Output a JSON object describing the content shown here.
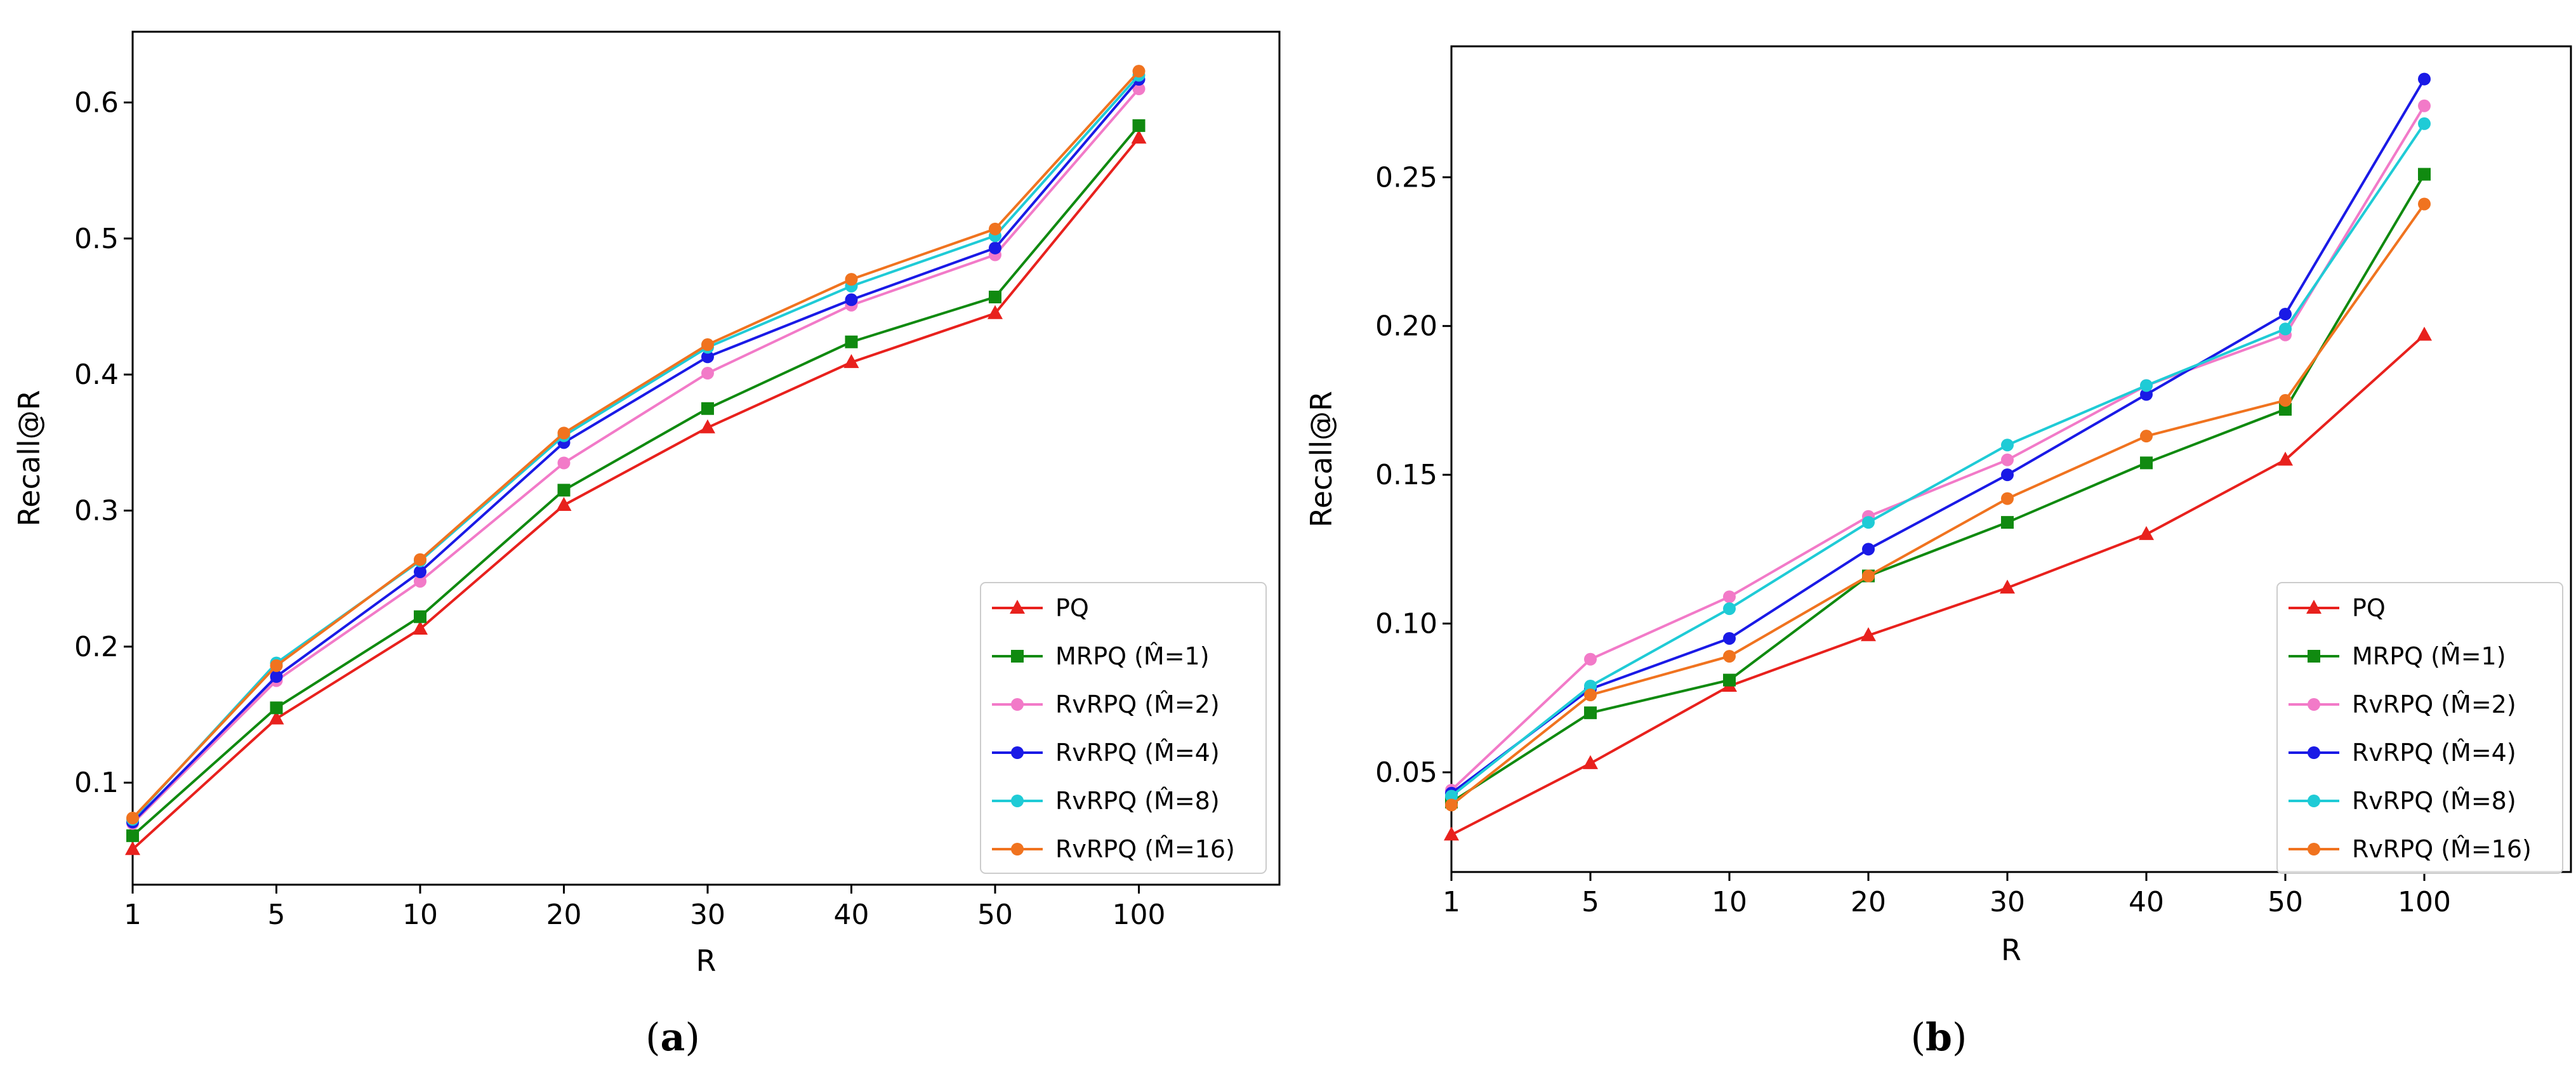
{
  "chart_data": [
    {
      "type": "line",
      "panel_label": "a",
      "xlabel": "R",
      "ylabel": "Recall@R",
      "categories": [
        "1",
        "5",
        "10",
        "20",
        "30",
        "40",
        "50",
        "100"
      ],
      "ylim": [
        0.025,
        0.652
      ],
      "yticks": [
        0.1,
        0.2,
        0.3,
        0.4,
        0.5,
        0.6
      ],
      "ytick_labels": [
        "0.1",
        "0.2",
        "0.3",
        "0.4",
        "0.5",
        "0.6"
      ],
      "grid": false,
      "legend": "bottom-right",
      "series": [
        {
          "name": "PQ",
          "name_base": "PQ",
          "name_param": "",
          "color": "#e8211d",
          "marker": "triangle",
          "values": [
            0.051,
            0.147,
            0.213,
            0.304,
            0.361,
            0.409,
            0.445,
            0.574
          ]
        },
        {
          "name": "MRPQ (M̂=1)",
          "name_base": "MRPQ",
          "name_param": "1",
          "color": "#108a10",
          "marker": "square",
          "values": [
            0.061,
            0.155,
            0.222,
            0.315,
            0.375,
            0.424,
            0.457,
            0.583
          ]
        },
        {
          "name": "RvRPQ (M̂=2)",
          "name_base": "RvRPQ",
          "name_param": "2",
          "color": "#f27ac8",
          "marker": "circle",
          "values": [
            0.07,
            0.175,
            0.248,
            0.335,
            0.401,
            0.451,
            0.488,
            0.61
          ]
        },
        {
          "name": "RvRPQ (M̂=4)",
          "name_base": "RvRPQ",
          "name_param": "4",
          "color": "#1a1ae6",
          "marker": "circle",
          "values": [
            0.071,
            0.178,
            0.255,
            0.35,
            0.413,
            0.455,
            0.493,
            0.617
          ]
        },
        {
          "name": "RvRPQ (M̂=8)",
          "name_base": "RvRPQ",
          "name_param": "8",
          "color": "#1fcbd6",
          "marker": "circle",
          "values": [
            0.073,
            0.188,
            0.263,
            0.355,
            0.42,
            0.465,
            0.502,
            0.62
          ]
        },
        {
          "name": "RvRPQ (M̂=16)",
          "name_base": "RvRPQ",
          "name_param": "16",
          "color": "#f0731f",
          "marker": "circle",
          "values": [
            0.074,
            0.186,
            0.264,
            0.357,
            0.422,
            0.47,
            0.507,
            0.623
          ]
        }
      ]
    },
    {
      "type": "line",
      "panel_label": "b",
      "xlabel": "R",
      "ylabel": "Recall@R",
      "categories": [
        "1",
        "5",
        "10",
        "20",
        "30",
        "40",
        "50",
        "100"
      ],
      "ylim": [
        0.0165,
        0.294
      ],
      "yticks": [
        0.05,
        0.1,
        0.15,
        0.2,
        0.25
      ],
      "ytick_labels": [
        "0.05",
        "0.10",
        "0.15",
        "0.20",
        "0.25"
      ],
      "grid": false,
      "legend": "bottom-right",
      "series": [
        {
          "name": "PQ",
          "name_base": "PQ",
          "name_param": "",
          "color": "#e8211d",
          "marker": "triangle",
          "values": [
            0.029,
            0.053,
            0.079,
            0.096,
            0.112,
            0.13,
            0.155,
            0.197
          ]
        },
        {
          "name": "MRPQ (M̂=1)",
          "name_base": "MRPQ",
          "name_param": "1",
          "color": "#108a10",
          "marker": "square",
          "values": [
            0.04,
            0.07,
            0.081,
            0.116,
            0.134,
            0.154,
            0.172,
            0.251
          ]
        },
        {
          "name": "RvRPQ (M̂=2)",
          "name_base": "RvRPQ",
          "name_param": "2",
          "color": "#f27ac8",
          "marker": "circle",
          "values": [
            0.044,
            0.088,
            0.109,
            0.136,
            0.155,
            0.18,
            0.197,
            0.274
          ]
        },
        {
          "name": "RvRPQ (M̂=4)",
          "name_base": "RvRPQ",
          "name_param": "4",
          "color": "#1a1ae6",
          "marker": "circle",
          "values": [
            0.043,
            0.078,
            0.095,
            0.125,
            0.15,
            0.177,
            0.204,
            0.283
          ]
        },
        {
          "name": "RvRPQ (M̂=8)",
          "name_base": "RvRPQ",
          "name_param": "8",
          "color": "#1fcbd6",
          "marker": "circle",
          "values": [
            0.042,
            0.079,
            0.105,
            0.134,
            0.16,
            0.18,
            0.199,
            0.268
          ]
        },
        {
          "name": "RvRPQ (M̂=16)",
          "name_base": "RvRPQ",
          "name_param": "16",
          "color": "#f0731f",
          "marker": "circle",
          "values": [
            0.039,
            0.076,
            0.089,
            0.116,
            0.142,
            0.163,
            0.175,
            0.241
          ]
        }
      ]
    }
  ]
}
